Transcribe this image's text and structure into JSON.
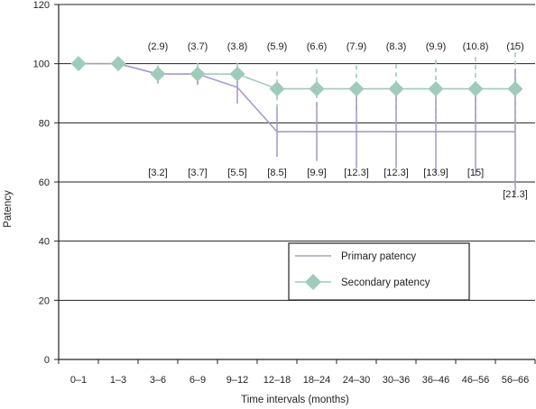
{
  "chart_data": {
    "type": "line",
    "xlabel": "Time intervals (months)",
    "ylabel": "Patency",
    "ylim": [
      0,
      120
    ],
    "yticks": [
      0,
      20,
      40,
      60,
      80,
      100,
      120
    ],
    "grid": true,
    "legend_position": "lower-right",
    "categories": [
      "0–1",
      "1–3",
      "3–6",
      "6–9",
      "9–12",
      "12–18",
      "18–24",
      "24–30",
      "30–36",
      "36–46",
      "46–56",
      "56–66"
    ],
    "series": [
      {
        "name": "Primary patency",
        "color": "#a79ec6",
        "values": [
          100,
          100,
          96.5,
          96.5,
          92,
          77,
          77,
          77,
          77,
          77,
          77,
          77
        ],
        "error_bar_labels": [
          "",
          "",
          "[3.2]",
          "[3.7]",
          "[5.5]",
          "[8.5]",
          "[9.9]",
          "[12.3]",
          "[12.3]",
          "[13.9]",
          "[15]",
          "[21.3]"
        ]
      },
      {
        "name": "Secondary patency",
        "color": "#9fcbbb",
        "marker": "diamond",
        "values": [
          100,
          100,
          96.5,
          96.5,
          96.5,
          91.5,
          91.5,
          91.5,
          91.5,
          91.5,
          91.5,
          91.5
        ],
        "error_bar_labels": [
          "",
          "",
          "(2.9)",
          "(3.7)",
          "(3.8)",
          "(5.9)",
          "(6.6)",
          "(7.9)",
          "(8.3)",
          "(9.9)",
          "(10.8)",
          "(15)"
        ]
      }
    ]
  }
}
